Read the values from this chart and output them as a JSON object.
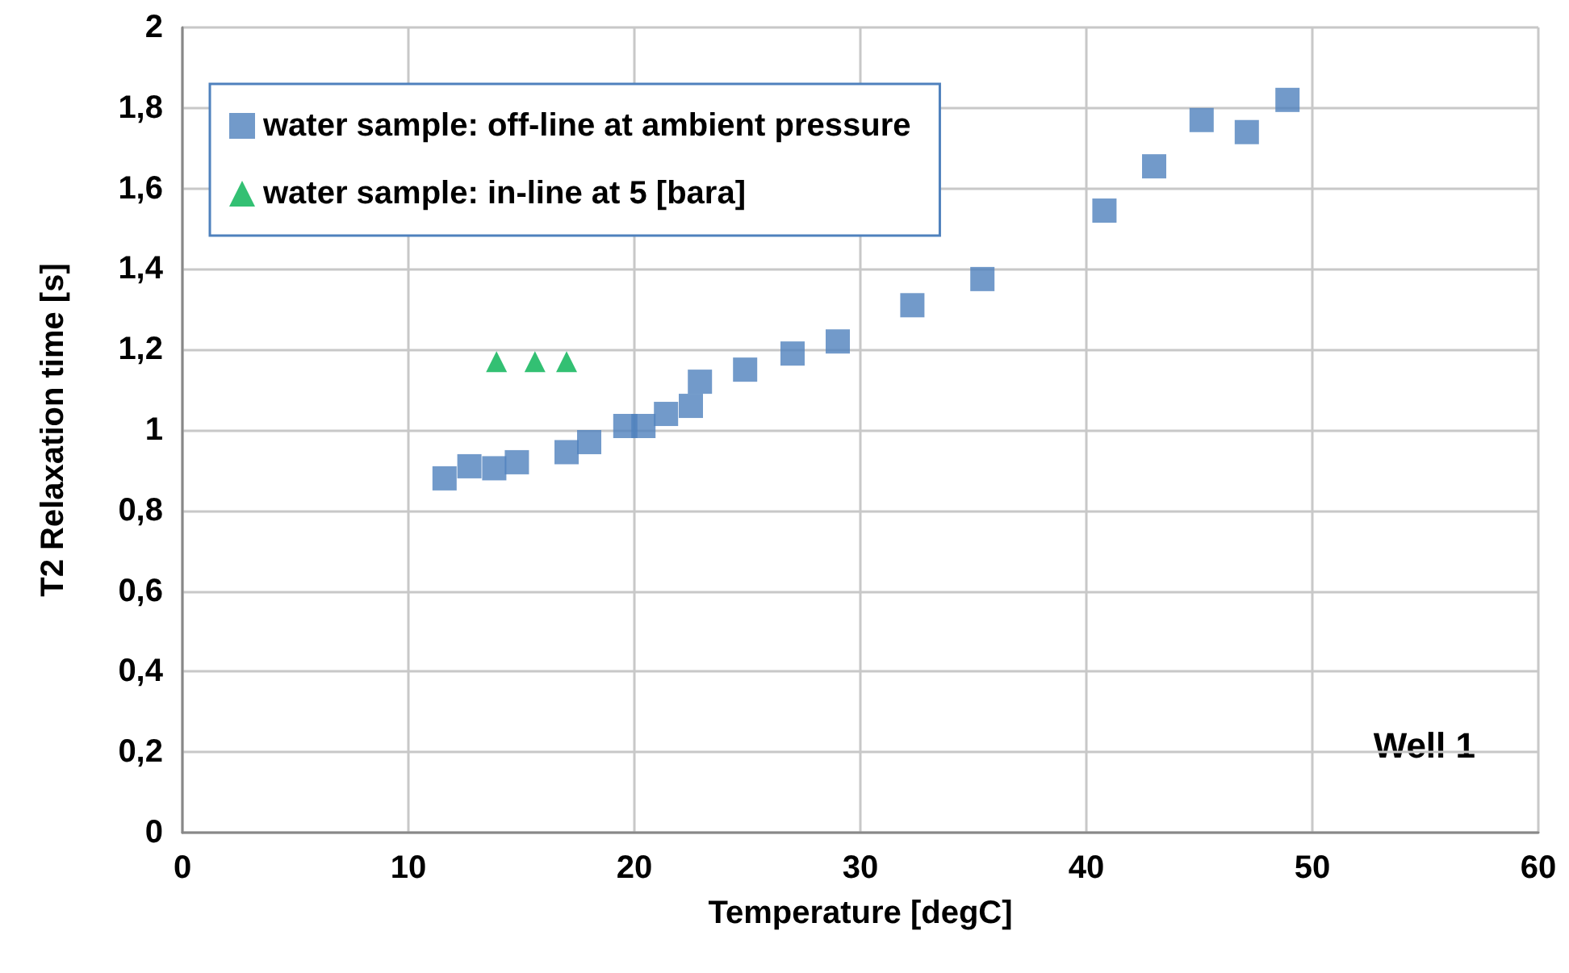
{
  "chart_data": {
    "type": "scatter",
    "xlabel": "Temperature [degC]",
    "ylabel": "T2 Relaxation time [s]",
    "annotations": [
      "Well 1"
    ],
    "xlim": [
      0,
      60
    ],
    "xticks": [
      0,
      10,
      20,
      30,
      40,
      50,
      60
    ],
    "ylim": [
      0,
      2
    ],
    "yticks": [
      0,
      {
        "value": 0.2,
        "label": "0,2"
      },
      {
        "value": 0.4,
        "label": "0,4"
      },
      {
        "value": 0.6,
        "label": "0,6"
      },
      {
        "value": 0.8,
        "label": "0,8"
      },
      1,
      {
        "value": 1.2,
        "label": "1,2"
      },
      {
        "value": 1.4,
        "label": "1,4"
      },
      {
        "value": 1.6,
        "label": "1,6"
      },
      {
        "value": 1.8,
        "label": "1,8"
      },
      2
    ],
    "grid": true,
    "legend": "top left",
    "series": [
      {
        "name": "water sample: off-line at ambient pressure",
        "color": "#4f81bd",
        "marker": "square",
        "x": [
          11.6,
          12.7,
          13.8,
          14.8,
          17.0,
          18.0,
          19.6,
          20.4,
          21.4,
          22.5,
          22.9,
          24.9,
          27.0,
          29.0,
          32.3,
          35.4,
          40.8,
          43.0,
          45.1,
          47.1,
          48.9
        ],
        "values": [
          0.88,
          0.91,
          0.905,
          0.92,
          0.945,
          0.97,
          1.01,
          1.01,
          1.04,
          1.06,
          1.12,
          1.15,
          1.19,
          1.22,
          1.31,
          1.375,
          1.545,
          1.655,
          1.77,
          1.74,
          1.82
        ]
      },
      {
        "name": "water sample: in-line at 5 [bara]",
        "color": "#00b050",
        "marker": "triangle",
        "x": [
          13.9,
          15.6,
          17.0
        ],
        "values": [
          1.17,
          1.17,
          1.17
        ]
      }
    ]
  }
}
